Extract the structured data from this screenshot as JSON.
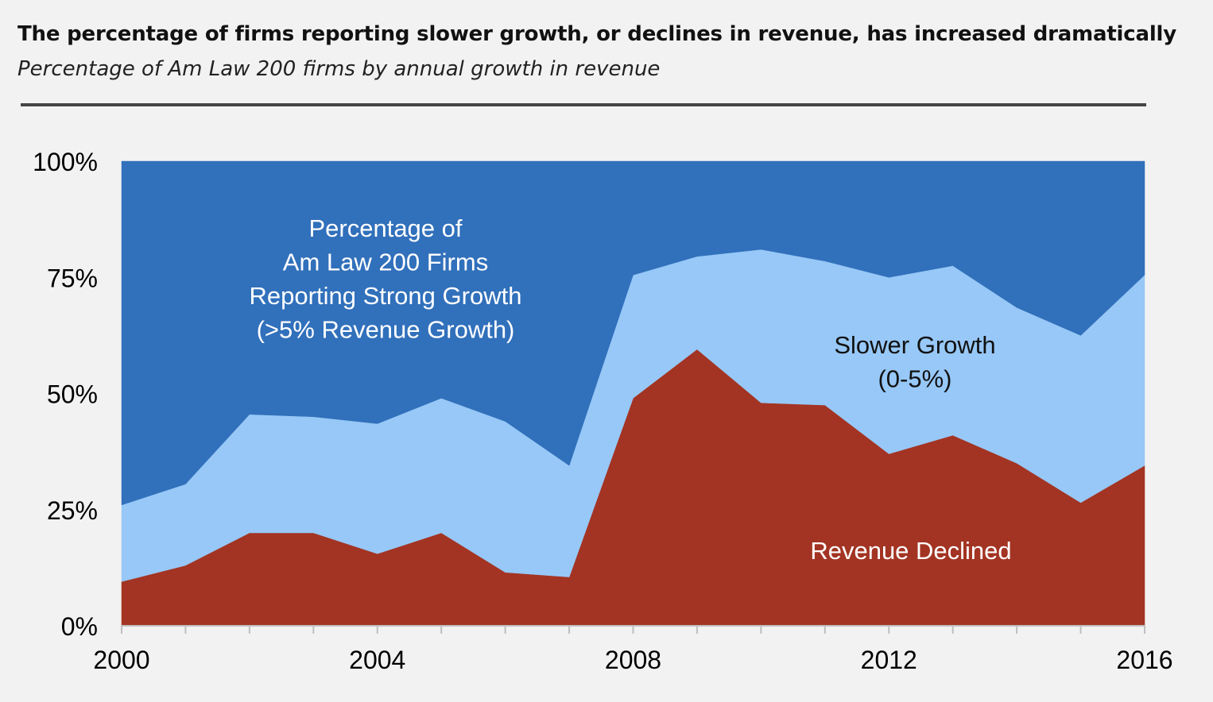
{
  "header": {
    "title": "The percentage of firms reporting slower growth, or declines in revenue, has increased dramatically",
    "subtitle": "Percentage of Am Law 200 firms by annual growth in revenue"
  },
  "chart_data": {
    "type": "area",
    "stacked": true,
    "x": [
      2000,
      2001,
      2002,
      2003,
      2004,
      2005,
      2006,
      2007,
      2008,
      2009,
      2010,
      2011,
      2012,
      2013,
      2014,
      2015,
      2016
    ],
    "series": [
      {
        "name": "Revenue Declined",
        "color": "#a33423",
        "values": [
          9.5,
          13,
          20,
          20,
          15.5,
          20,
          11.5,
          10.5,
          49,
          59.5,
          48,
          47.5,
          37,
          41,
          35,
          26.5,
          34.5
        ]
      },
      {
        "name": "Slower Growth (0-5%)",
        "color": "#97c8f7",
        "values": [
          16.5,
          17.5,
          25.5,
          25,
          28,
          29,
          32.5,
          24,
          26.5,
          20,
          33,
          31,
          38,
          36.5,
          33.5,
          36,
          41
        ]
      },
      {
        "name": "Strong Growth (>5% Revenue Growth)",
        "color": "#3170bb",
        "values": [
          74,
          69.5,
          54.5,
          55,
          56.5,
          51,
          56,
          65.5,
          24.5,
          20.5,
          19,
          21.5,
          25,
          22.5,
          31.5,
          37.5,
          24.5
        ]
      }
    ],
    "annotations": [
      {
        "series": "Strong Growth (>5% Revenue Growth)",
        "lines": [
          "Percentage of",
          "Am Law 200 Firms",
          "Reporting Strong Growth",
          "(>5% Revenue Growth)"
        ],
        "color": "#ffffff"
      },
      {
        "series": "Slower Growth (0-5%)",
        "lines": [
          "Slower Growth",
          "(0-5%)"
        ],
        "color": "#111111"
      },
      {
        "series": "Revenue Declined",
        "lines": [
          "Revenue Declined"
        ],
        "color": "#ffffff"
      }
    ],
    "xticks": [
      2000,
      2004,
      2008,
      2012,
      2016
    ],
    "yticks": [
      0,
      25,
      50,
      75,
      100
    ],
    "ytick_labels": [
      "0%",
      "25%",
      "50%",
      "75%",
      "100%"
    ],
    "xlim": [
      2000,
      2016
    ],
    "ylim": [
      0,
      100
    ],
    "xlabel": "",
    "ylabel": "",
    "grid": false,
    "legend": "none"
  }
}
